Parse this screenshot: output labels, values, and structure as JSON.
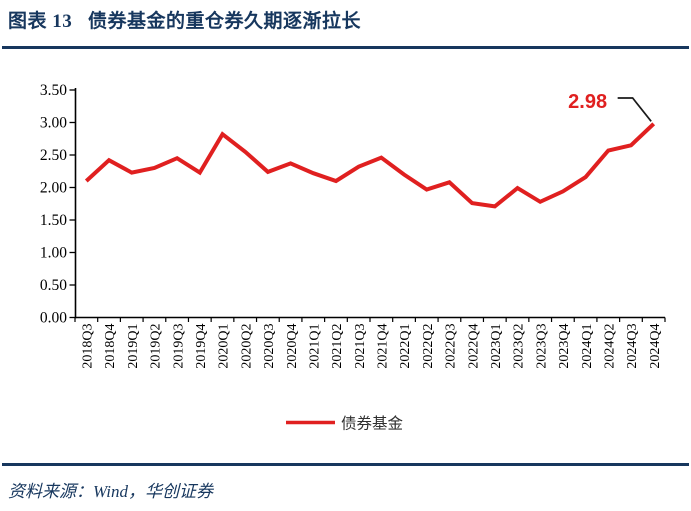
{
  "header": {
    "title": "图表 13   债券基金的重仓券久期逐渐拉长"
  },
  "footer": {
    "source": "资料来源：Wind，华创证券"
  },
  "colors": {
    "accent_navy": "#17375e",
    "series_red": "#e02020",
    "axis_black": "#000000",
    "legend_text": "#303030",
    "callout_black": "#1a1a1a"
  },
  "chart_data": {
    "type": "line",
    "title": "图表 13   债券基金的重仓券久期逐渐拉长",
    "xlabel": "",
    "ylabel": "",
    "ylim": [
      0,
      3.5
    ],
    "y_tick_step": 0.5,
    "y_tick_labels": [
      "0.00",
      "0.50",
      "1.00",
      "1.50",
      "2.00",
      "2.50",
      "3.00",
      "3.50"
    ],
    "grid": false,
    "legend_position": "bottom-center",
    "categories": [
      "2018Q3",
      "2018Q4",
      "2019Q1",
      "2019Q2",
      "2019Q3",
      "2019Q4",
      "2020Q1",
      "2020Q2",
      "2020Q3",
      "2020Q4",
      "2021Q1",
      "2021Q2",
      "2021Q3",
      "2021Q4",
      "2022Q1",
      "2022Q2",
      "2022Q3",
      "2022Q4",
      "2023Q1",
      "2023Q2",
      "2023Q3",
      "2023Q4",
      "2024Q1",
      "2024Q2",
      "2024Q3",
      "2024Q4"
    ],
    "series": [
      {
        "name": "债券基金",
        "color": "#e02020",
        "values": [
          2.1,
          2.42,
          2.23,
          2.3,
          2.45,
          2.23,
          2.82,
          2.55,
          2.24,
          2.37,
          2.22,
          2.1,
          2.32,
          2.46,
          2.2,
          1.97,
          2.08,
          1.76,
          1.71,
          1.99,
          1.78,
          1.94,
          2.16,
          2.57,
          2.65,
          2.98
        ]
      }
    ],
    "annotation": {
      "text": "2.98",
      "target_category": "2024Q4",
      "color": "#e02020"
    }
  }
}
